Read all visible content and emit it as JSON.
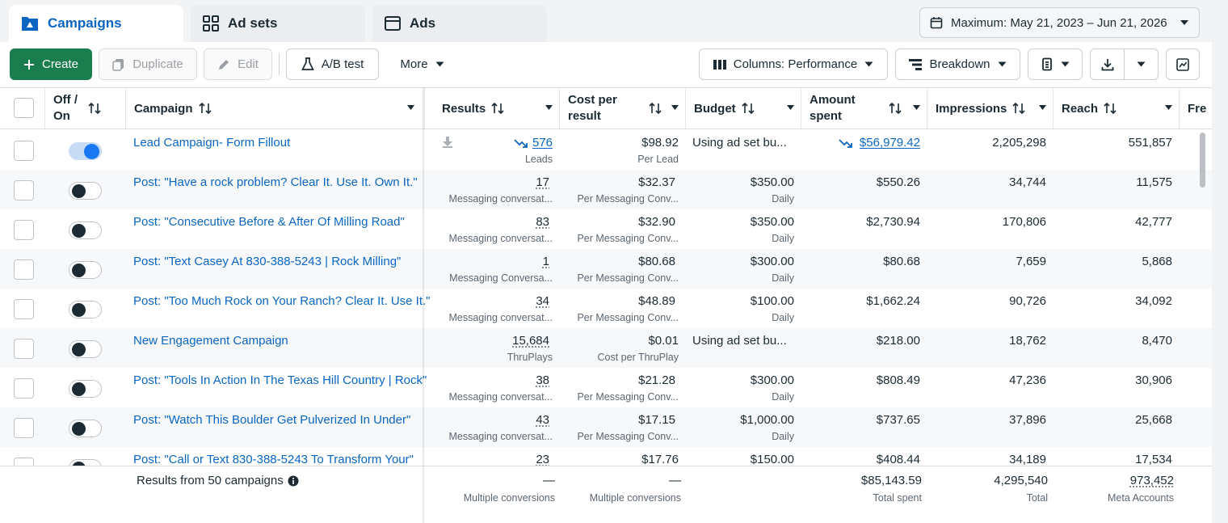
{
  "tabs": [
    {
      "label": "Campaigns",
      "icon": "campaign-folder-icon"
    },
    {
      "label": "Ad sets",
      "icon": "grid-icon"
    },
    {
      "label": "Ads",
      "icon": "ad-window-icon"
    }
  ],
  "date_range": {
    "label": "Maximum: May 21, 2023 – Jun 21, 2026"
  },
  "toolbar": {
    "create": "Create",
    "duplicate": "Duplicate",
    "edit": "Edit",
    "ab_test": "A/B test",
    "more": "More",
    "columns": "Columns: Performance",
    "breakdown": "Breakdown"
  },
  "headers": {
    "off_on_1": "Off /",
    "off_on_2": "On",
    "campaign": "Campaign",
    "results": "Results",
    "cost_1": "Cost per",
    "cost_2": "result",
    "budget": "Budget",
    "amount_1": "Amount",
    "amount_2": "spent",
    "impressions": "Impressions",
    "reach": "Reach",
    "frequency": "Fre"
  },
  "rows": [
    {
      "on": true,
      "name": "Lead Campaign- Form Fillout",
      "results": "576",
      "results_sub": "Leads",
      "cost": "$98.92",
      "cost_sub": "Per Lead",
      "budget": "Using ad set bu...",
      "budget_sub": "",
      "spent": "$56,979.42",
      "impressions": "2,205,298",
      "reach": "551,857"
    },
    {
      "on": false,
      "name": "Post: \"Have a rock problem? Clear It. Use It. Own It.\"",
      "results": "17",
      "results_sub": "Messaging conversat...",
      "cost": "$32.37",
      "cost_sub": "Per Messaging Conv...",
      "budget": "$350.00",
      "budget_sub": "Daily",
      "spent": "$550.26",
      "impressions": "34,744",
      "reach": "11,575"
    },
    {
      "on": false,
      "name": "Post: \"Consecutive Before & After Of Milling Road\"",
      "results": "83",
      "results_sub": "Messaging conversat...",
      "cost": "$32.90",
      "cost_sub": "Per Messaging Conv...",
      "budget": "$350.00",
      "budget_sub": "Daily",
      "spent": "$2,730.94",
      "impressions": "170,806",
      "reach": "42,777"
    },
    {
      "on": false,
      "name": "Post: \"Text Casey At 830-388-5243 | Rock Milling\"",
      "results": "1",
      "results_sub": "Messaging Conversa...",
      "cost": "$80.68",
      "cost_sub": "Per Messaging Conv...",
      "budget": "$300.00",
      "budget_sub": "Daily",
      "spent": "$80.68",
      "impressions": "7,659",
      "reach": "5,868"
    },
    {
      "on": false,
      "name": "Post: \"Too Much Rock on Your Ranch? Clear It. Use It.\"",
      "results": "34",
      "results_sub": "Messaging conversat...",
      "cost": "$48.89",
      "cost_sub": "Per Messaging Conv...",
      "budget": "$100.00",
      "budget_sub": "Daily",
      "spent": "$1,662.24",
      "impressions": "90,726",
      "reach": "34,092"
    },
    {
      "on": false,
      "name": "New Engagement Campaign",
      "results": "15,684",
      "results_sub": "ThruPlays",
      "cost": "$0.01",
      "cost_sub": "Cost per ThruPlay",
      "budget": "Using ad set bu...",
      "budget_sub": "",
      "spent": "$218.00",
      "impressions": "18,762",
      "reach": "8,470"
    },
    {
      "on": false,
      "name": "Post: \"Tools In Action In The Texas Hill Country | Rock\"",
      "results": "38",
      "results_sub": "Messaging conversat...",
      "cost": "$21.28",
      "cost_sub": "Per Messaging Conv...",
      "budget": "$300.00",
      "budget_sub": "Daily",
      "spent": "$808.49",
      "impressions": "47,236",
      "reach": "30,906"
    },
    {
      "on": false,
      "name": "Post: \"Watch This Boulder Get Pulverized In Under\"",
      "results": "43",
      "results_sub": "Messaging conversat...",
      "cost": "$17.15",
      "cost_sub": "Per Messaging Conv...",
      "budget": "$1,000.00",
      "budget_sub": "Daily",
      "spent": "$737.65",
      "impressions": "37,896",
      "reach": "25,668"
    },
    {
      "on": false,
      "name": "Post: \"Call or Text 830-388-5243 To Transform Your\"",
      "results": "23",
      "results_sub": "",
      "cost": "$17.76",
      "cost_sub": "",
      "budget": "$150.00",
      "budget_sub": "",
      "spent": "$408.44",
      "impressions": "34,189",
      "reach": "17,534"
    }
  ],
  "footer": {
    "summary": "Results from 50 campaigns",
    "results_dash": "—",
    "results_sub": "Multiple conversions",
    "cost_dash": "—",
    "cost_sub": "Multiple conversions",
    "spent": "$85,143.59",
    "spent_sub": "Total spent",
    "impressions": "4,295,540",
    "impressions_sub": "Total",
    "reach": "973,452",
    "reach_sub": "Meta Accounts"
  },
  "colors": {
    "accent": "#0a66c2",
    "create_green": "#1a7d4d",
    "toggle_on": "#1877f2"
  }
}
